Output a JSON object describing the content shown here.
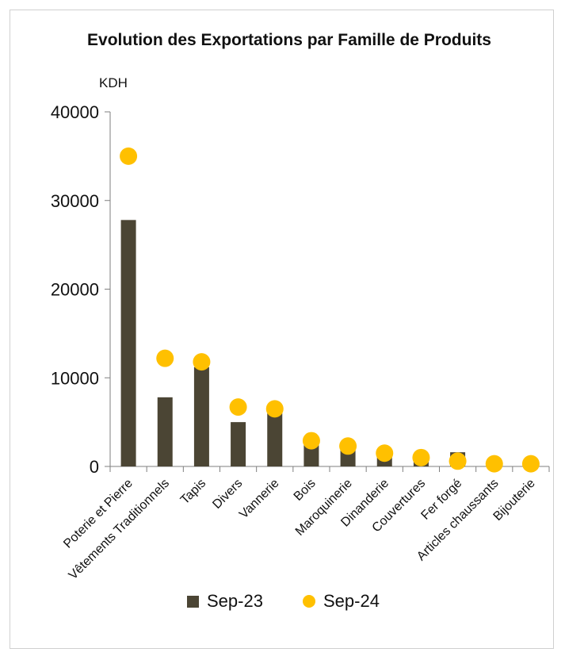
{
  "chart_data": {
    "type": "bar",
    "title": "Evolution des Exportations  par Famille de Produits",
    "unit_label": "KDH",
    "categories": [
      "Poterie et Pierre",
      "Vêtements Traditionnels",
      "Tapis",
      "Divers",
      "Vannerie",
      "Bois",
      "Maroquinerie",
      "Dinanderie",
      "Couvertures",
      "Fer forgé",
      "Articles chaussants",
      "Bijouterie"
    ],
    "series": [
      {
        "name": "Sep-23",
        "mark": "bar",
        "color": "#4b4534",
        "values": [
          27800,
          7800,
          11200,
          5000,
          6000,
          2400,
          2000,
          1300,
          900,
          1600,
          200,
          200
        ]
      },
      {
        "name": "Sep-24",
        "mark": "point",
        "color": "#ffc000",
        "values": [
          35000,
          12200,
          11800,
          6700,
          6500,
          2900,
          2300,
          1500,
          1000,
          600,
          300,
          300
        ]
      }
    ],
    "ylim": [
      0,
      40000
    ],
    "yticks": [
      0,
      10000,
      20000,
      30000,
      40000
    ],
    "grid": false,
    "legend_position": "bottom"
  }
}
